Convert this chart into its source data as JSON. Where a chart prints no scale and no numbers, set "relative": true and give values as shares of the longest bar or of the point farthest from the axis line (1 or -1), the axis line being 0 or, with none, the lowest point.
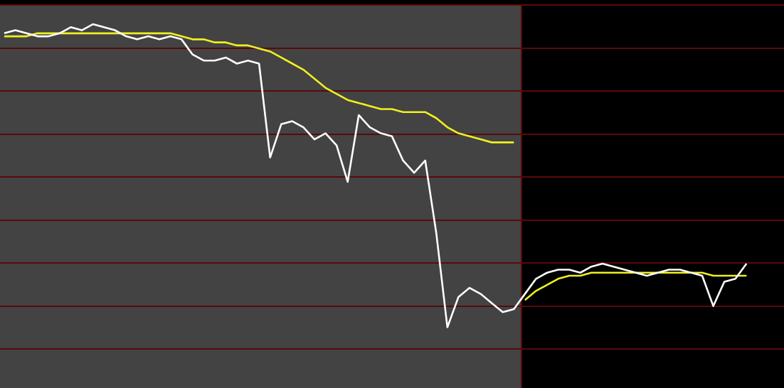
{
  "chart_data": {
    "type": "line",
    "relative": true,
    "legend": false,
    "marker": "none",
    "categories": [
      null,
      null,
      null,
      null,
      null,
      null,
      null,
      null,
      null,
      null,
      null,
      null,
      null,
      null,
      null,
      null,
      null,
      null,
      null,
      null,
      null,
      null,
      null,
      null,
      null,
      null,
      null,
      null,
      null,
      null,
      null,
      null,
      null,
      null,
      null,
      null,
      null,
      null,
      null,
      null,
      null,
      null,
      null,
      null,
      null,
      null,
      null,
      null,
      null,
      null,
      null,
      null,
      null,
      null,
      null,
      null,
      null,
      null,
      null,
      null,
      null,
      null,
      null,
      null,
      null,
      null,
      null,
      null,
      null,
      null,
      null
    ],
    "series": [
      {
        "color": "#ffffff",
        "values": [
          0.97,
          0.98,
          0.97,
          0.96,
          0.96,
          0.97,
          0.99,
          0.98,
          1.0,
          0.99,
          0.98,
          0.96,
          0.95,
          0.96,
          0.95,
          0.96,
          0.95,
          0.9,
          0.88,
          0.88,
          0.89,
          0.87,
          0.88,
          0.87,
          0.56,
          0.67,
          0.68,
          0.66,
          0.62,
          0.64,
          0.6,
          0.48,
          0.7,
          0.66,
          0.64,
          0.63,
          0.55,
          0.51,
          0.55,
          0.31,
          0.0,
          0.1,
          0.13,
          0.11,
          0.08,
          0.05,
          0.06,
          0.11,
          0.16,
          0.18,
          0.19,
          0.19,
          0.18,
          0.2,
          0.21,
          0.2,
          0.19,
          0.18,
          0.17,
          0.18,
          0.19,
          0.19,
          0.18,
          0.17,
          0.07,
          0.15,
          0.16,
          0.21,
          null,
          null,
          null
        ]
      },
      {
        "color": "#f0f020",
        "values": [
          0.96,
          0.96,
          0.96,
          0.97,
          0.97,
          0.97,
          0.97,
          0.97,
          0.97,
          0.97,
          0.97,
          0.97,
          0.97,
          0.97,
          0.97,
          0.97,
          0.96,
          0.95,
          0.95,
          0.94,
          0.94,
          0.93,
          0.93,
          0.92,
          0.91,
          0.89,
          0.87,
          0.85,
          0.82,
          0.79,
          0.77,
          0.75,
          0.74,
          0.73,
          0.72,
          0.72,
          0.71,
          0.71,
          0.71,
          0.69,
          0.66,
          0.64,
          0.63,
          0.62,
          0.61,
          0.61,
          0.61,
          null,
          null,
          null,
          null,
          null,
          null,
          null,
          null,
          null,
          null,
          null,
          null,
          null,
          null,
          null,
          null,
          null,
          null,
          null,
          null,
          null,
          null,
          null,
          null
        ]
      },
      {
        "color": "#f0f020",
        "values": [
          null,
          null,
          null,
          null,
          null,
          null,
          null,
          null,
          null,
          null,
          null,
          null,
          null,
          null,
          null,
          null,
          null,
          null,
          null,
          null,
          null,
          null,
          null,
          null,
          null,
          null,
          null,
          null,
          null,
          null,
          null,
          null,
          null,
          null,
          null,
          null,
          null,
          null,
          null,
          null,
          null,
          null,
          null,
          null,
          null,
          null,
          null,
          0.09,
          0.12,
          0.14,
          0.16,
          0.17,
          0.17,
          0.18,
          0.18,
          0.18,
          0.18,
          0.18,
          0.18,
          0.18,
          0.18,
          0.18,
          0.18,
          0.18,
          0.17,
          0.17,
          0.17,
          0.17,
          null,
          null,
          null
        ]
      }
    ]
  }
}
